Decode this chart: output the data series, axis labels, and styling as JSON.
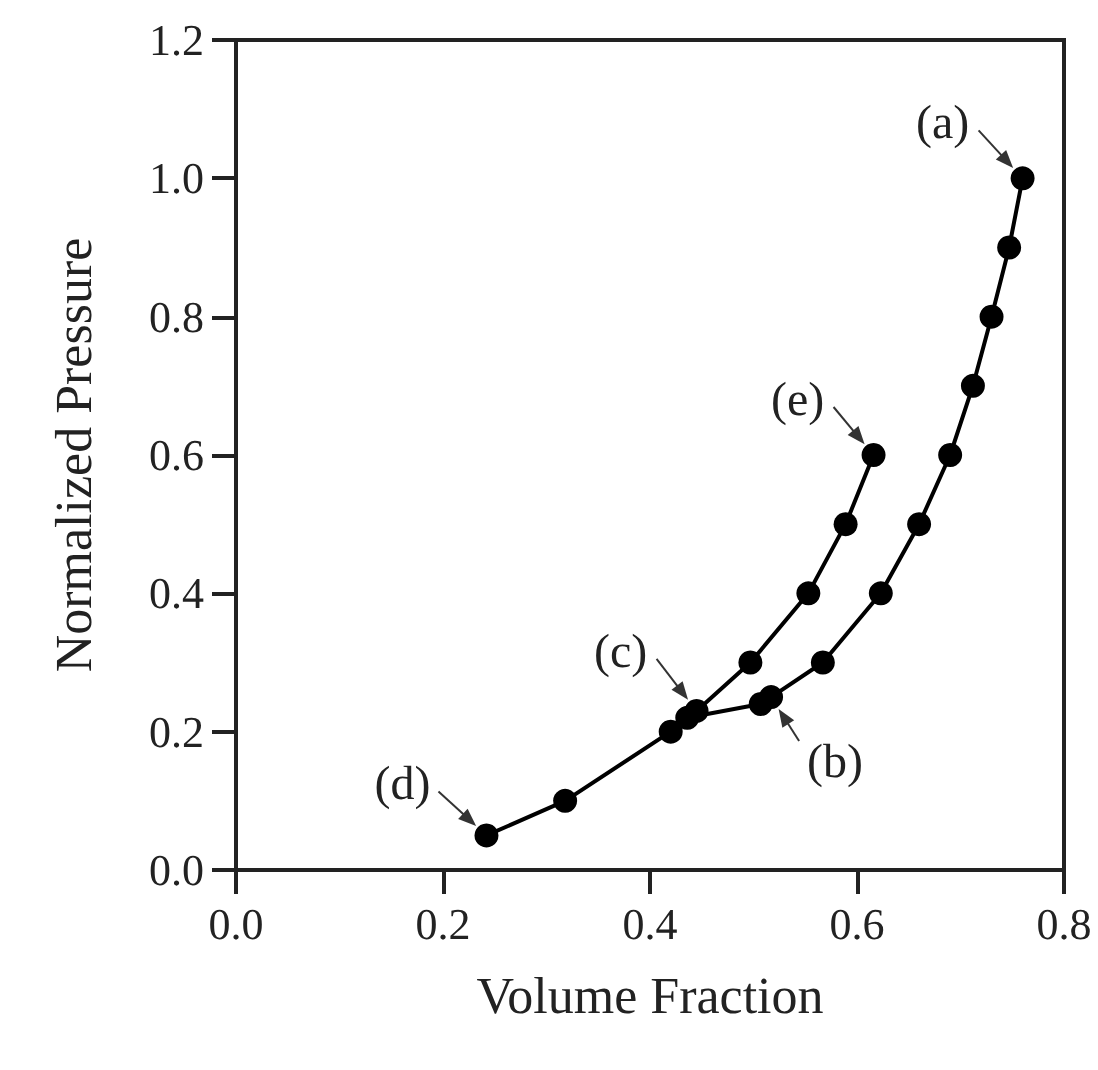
{
  "chart_data": {
    "type": "line",
    "xlabel": "Volume Fraction",
    "ylabel": "Normalized Pressure",
    "xlim": [
      0,
      0.8
    ],
    "xticks": [
      {
        "value": 0,
        "label": "0.0"
      },
      {
        "value": 0.2,
        "label": "0.2"
      },
      {
        "value": 0.4,
        "label": "0.4"
      },
      {
        "value": 0.6,
        "label": "0.6"
      },
      {
        "value": 0.8,
        "label": "0.8"
      }
    ],
    "ylim": [
      0,
      1.2
    ],
    "yticks": [
      {
        "value": 0,
        "label": "0.0"
      },
      {
        "value": 0.2,
        "label": "0.2"
      },
      {
        "value": 0.4,
        "label": "0.4"
      },
      {
        "value": 0.6,
        "label": "0.6"
      },
      {
        "value": 0.8,
        "label": "0.8"
      },
      {
        "value": 1.0,
        "label": "1.0"
      },
      {
        "value": 1.2,
        "label": "1.2"
      }
    ],
    "series": [
      {
        "color": "#000000",
        "x": [
          0.76,
          0.747,
          0.73,
          0.712,
          0.69,
          0.66,
          0.623,
          0.567,
          0.517,
          0.507,
          0.436,
          0.42,
          0.318,
          0.242
        ],
        "values": [
          1.0,
          0.9,
          0.8,
          0.7,
          0.6,
          0.5,
          0.4,
          0.3,
          0.25,
          0.24,
          0.22,
          0.2,
          0.1,
          0.05
        ]
      },
      {
        "color": "#000000",
        "x": [
          0.445,
          0.497,
          0.553,
          0.589,
          0.616
        ],
        "values": [
          0.23,
          0.3,
          0.4,
          0.5,
          0.6
        ]
      }
    ],
    "annotations": [
      {
        "text": "(a)",
        "x": 0.76,
        "y": 1.0
      },
      {
        "text": "(b)",
        "x": 0.517,
        "y": 0.25
      },
      {
        "text": "(c)",
        "x": 0.445,
        "y": 0.23
      },
      {
        "text": "(d)",
        "x": 0.242,
        "y": 0.05
      },
      {
        "text": "(e)",
        "x": 0.616,
        "y": 0.6
      }
    ],
    "marker": "circle",
    "line_style": "solid"
  }
}
